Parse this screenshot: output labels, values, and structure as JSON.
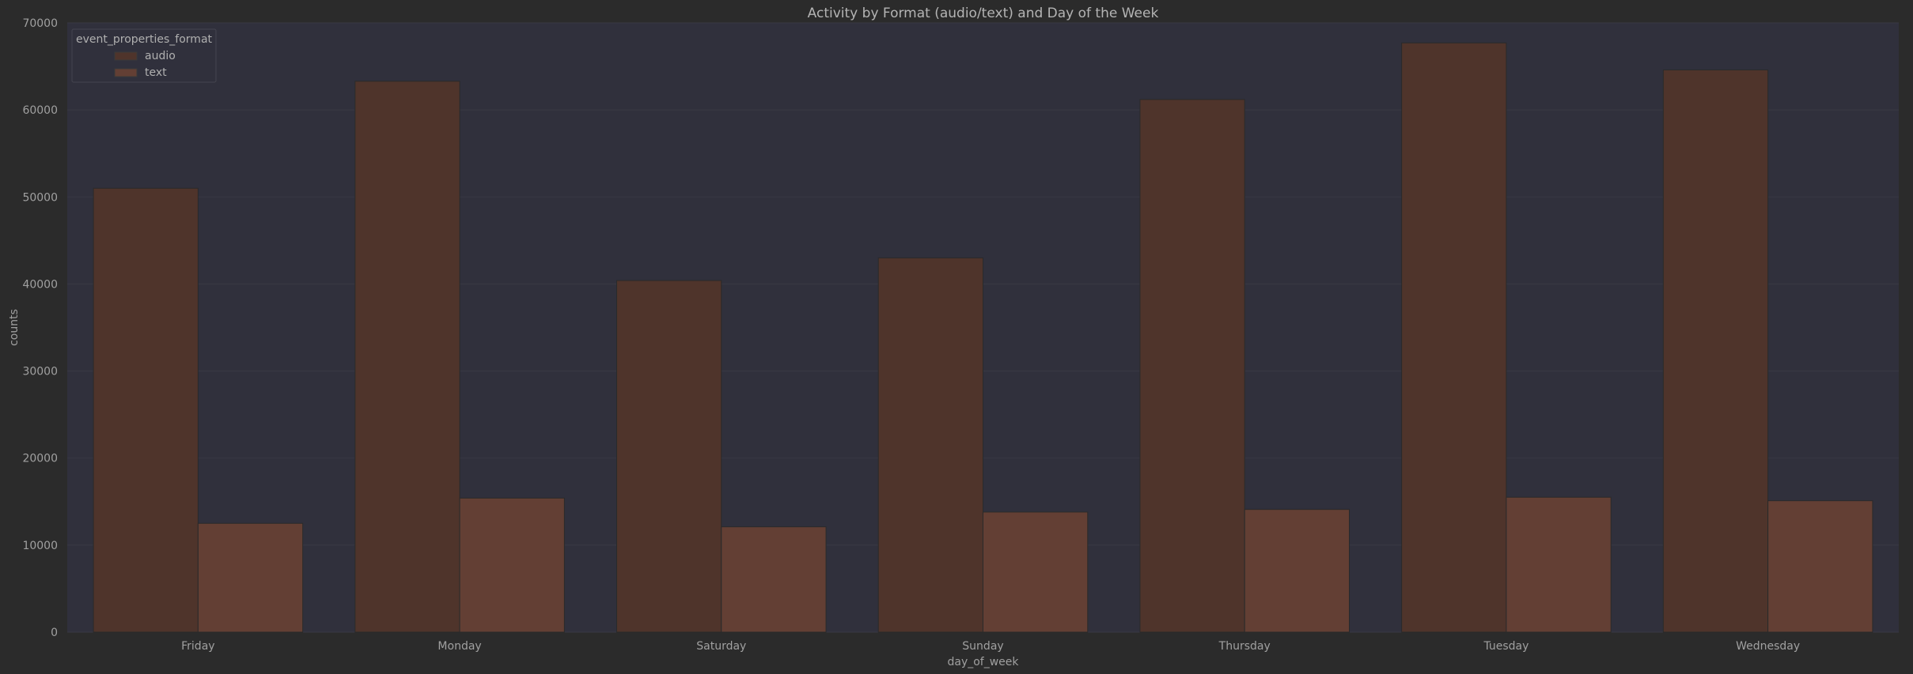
{
  "chart_data": {
    "type": "bar",
    "title": "Activity by Format (audio/text) and Day of the Week",
    "xlabel": "day_of_week",
    "ylabel": "counts",
    "categories": [
      "Friday",
      "Monday",
      "Saturday",
      "Sunday",
      "Thursday",
      "Tuesday",
      "Wednesday"
    ],
    "series": [
      {
        "name": "audio",
        "color": "#4f342b",
        "values": [
          51000,
          63300,
          40400,
          43000,
          61200,
          67700,
          64600
        ]
      },
      {
        "name": "text",
        "color": "#633f34",
        "values": [
          12500,
          15400,
          12100,
          13800,
          14100,
          15500,
          15100
        ]
      }
    ],
    "ylim": [
      0,
      70000
    ],
    "yticks": [
      0,
      10000,
      20000,
      30000,
      40000,
      50000,
      60000,
      70000
    ],
    "legend": {
      "title": "event_properties_format",
      "position": "top-left"
    },
    "grid": true,
    "colors": {
      "background": "#2b2b2b",
      "plot_background": "#30303c",
      "grid": "#393944",
      "text": "#a0a0a0"
    }
  }
}
